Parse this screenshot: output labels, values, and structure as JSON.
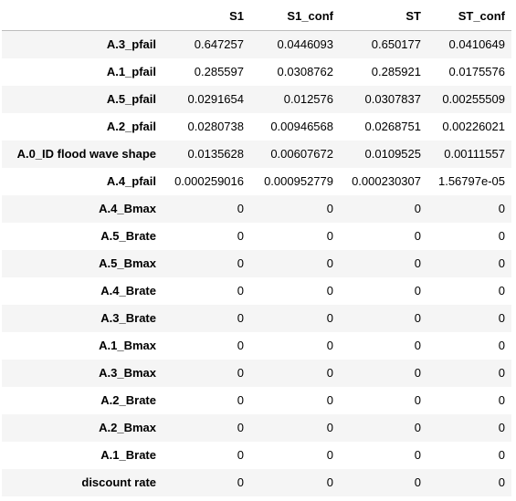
{
  "table": {
    "columns": [
      "S1",
      "S1_conf",
      "ST",
      "ST_conf"
    ],
    "rows": [
      {
        "index": "A.3_pfail",
        "values": [
          "0.647257",
          "0.0446093",
          "0.650177",
          "0.0410649"
        ]
      },
      {
        "index": "A.1_pfail",
        "values": [
          "0.285597",
          "0.0308762",
          "0.285921",
          "0.0175576"
        ]
      },
      {
        "index": "A.5_pfail",
        "values": [
          "0.0291654",
          "0.012576",
          "0.0307837",
          "0.00255509"
        ]
      },
      {
        "index": "A.2_pfail",
        "values": [
          "0.0280738",
          "0.00946568",
          "0.0268751",
          "0.00226021"
        ]
      },
      {
        "index": "A.0_ID flood wave shape",
        "values": [
          "0.0135628",
          "0.00607672",
          "0.0109525",
          "0.00111557"
        ]
      },
      {
        "index": "A.4_pfail",
        "values": [
          "0.000259016",
          "0.000952779",
          "0.000230307",
          "1.56797e-05"
        ]
      },
      {
        "index": "A.4_Bmax",
        "values": [
          "0",
          "0",
          "0",
          "0"
        ]
      },
      {
        "index": "A.5_Brate",
        "values": [
          "0",
          "0",
          "0",
          "0"
        ]
      },
      {
        "index": "A.5_Bmax",
        "values": [
          "0",
          "0",
          "0",
          "0"
        ]
      },
      {
        "index": "A.4_Brate",
        "values": [
          "0",
          "0",
          "0",
          "0"
        ]
      },
      {
        "index": "A.3_Brate",
        "values": [
          "0",
          "0",
          "0",
          "0"
        ]
      },
      {
        "index": "A.1_Bmax",
        "values": [
          "0",
          "0",
          "0",
          "0"
        ]
      },
      {
        "index": "A.3_Bmax",
        "values": [
          "0",
          "0",
          "0",
          "0"
        ]
      },
      {
        "index": "A.2_Brate",
        "values": [
          "0",
          "0",
          "0",
          "0"
        ]
      },
      {
        "index": "A.2_Bmax",
        "values": [
          "0",
          "0",
          "0",
          "0"
        ]
      },
      {
        "index": "A.1_Brate",
        "values": [
          "0",
          "0",
          "0",
          "0"
        ]
      },
      {
        "index": "discount rate",
        "values": [
          "0",
          "0",
          "0",
          "0"
        ]
      }
    ]
  }
}
